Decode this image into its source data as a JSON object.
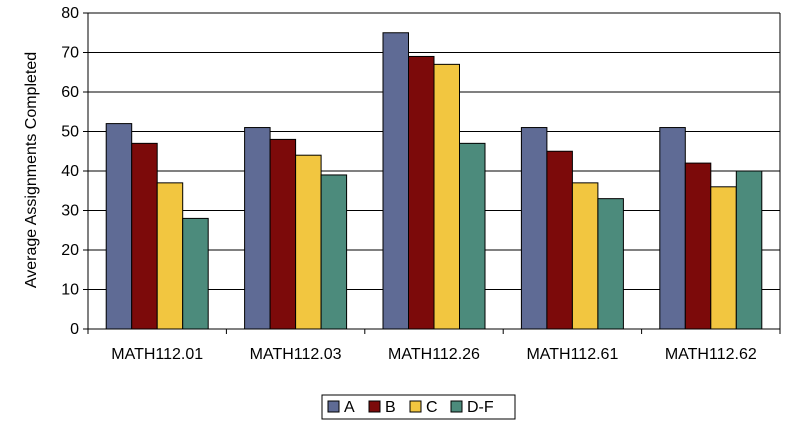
{
  "chart_data": {
    "type": "bar",
    "title": "",
    "xlabel": "",
    "ylabel": "Average Assignments Completed",
    "ylim": [
      0,
      80
    ],
    "yticks": [
      0,
      10,
      20,
      30,
      40,
      50,
      60,
      70,
      80
    ],
    "grid": true,
    "legend_position": "bottom",
    "categories": [
      "MATH112.01",
      "MATH112.03",
      "MATH112.26",
      "MATH112.61",
      "MATH112.62"
    ],
    "series": [
      {
        "name": "A",
        "color": "#5F6B95",
        "values": [
          52,
          51,
          75,
          51,
          51
        ]
      },
      {
        "name": "B",
        "color": "#7C0A0A",
        "values": [
          47,
          48,
          69,
          45,
          42
        ]
      },
      {
        "name": "C",
        "color": "#F2C640",
        "values": [
          37,
          44,
          67,
          37,
          36
        ]
      },
      {
        "name": "D-F",
        "color": "#4C8B7C",
        "values": [
          28,
          39,
          47,
          33,
          40
        ]
      }
    ]
  }
}
